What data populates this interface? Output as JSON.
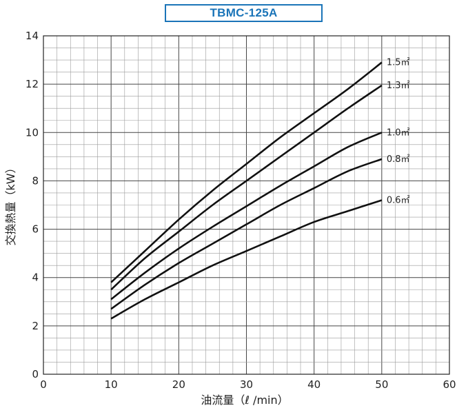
{
  "chart_data": {
    "type": "line",
    "title": "TBMC-125A",
    "xlabel": "油流量（ℓ /min）",
    "ylabel": "交換熱量（kW）",
    "xlim": [
      0,
      60
    ],
    "ylim": [
      0,
      14
    ],
    "x_ticks": [
      "0",
      "10",
      "20",
      "30",
      "40",
      "50",
      "60"
    ],
    "y_ticks": [
      "0",
      "2",
      "4",
      "6",
      "8",
      "10",
      "12",
      "14"
    ],
    "grid": true,
    "series": [
      {
        "name": "1.5㎡",
        "x": [
          10,
          15,
          20,
          25,
          30,
          35,
          40,
          45,
          50
        ],
        "y": [
          3.8,
          5.1,
          6.4,
          7.6,
          8.7,
          9.8,
          10.8,
          11.8,
          12.9
        ]
      },
      {
        "name": "1.3㎡",
        "x": [
          10,
          15,
          20,
          25,
          30,
          35,
          40,
          45,
          50
        ],
        "y": [
          3.5,
          4.8,
          5.9,
          7.0,
          8.0,
          9.0,
          10.0,
          11.0,
          11.95
        ]
      },
      {
        "name": "1.0㎡",
        "x": [
          10,
          15,
          20,
          25,
          30,
          35,
          40,
          45,
          50
        ],
        "y": [
          3.1,
          4.2,
          5.2,
          6.1,
          6.95,
          7.8,
          8.6,
          9.4,
          10.0
        ]
      },
      {
        "name": "0.8㎡",
        "x": [
          10,
          15,
          20,
          25,
          30,
          35,
          40,
          45,
          50
        ],
        "y": [
          2.7,
          3.7,
          4.6,
          5.4,
          6.2,
          7.0,
          7.7,
          8.4,
          8.9
        ]
      },
      {
        "name": "0.6㎡",
        "x": [
          10,
          15,
          20,
          25,
          30,
          35,
          40,
          45,
          50
        ],
        "y": [
          2.3,
          3.1,
          3.8,
          4.5,
          5.1,
          5.7,
          6.3,
          6.75,
          7.2
        ]
      }
    ]
  },
  "colors": {
    "title": "#1a74b8",
    "curve": "#111111",
    "grid_minor": "#9a9a9a",
    "grid_major": "#444444"
  }
}
